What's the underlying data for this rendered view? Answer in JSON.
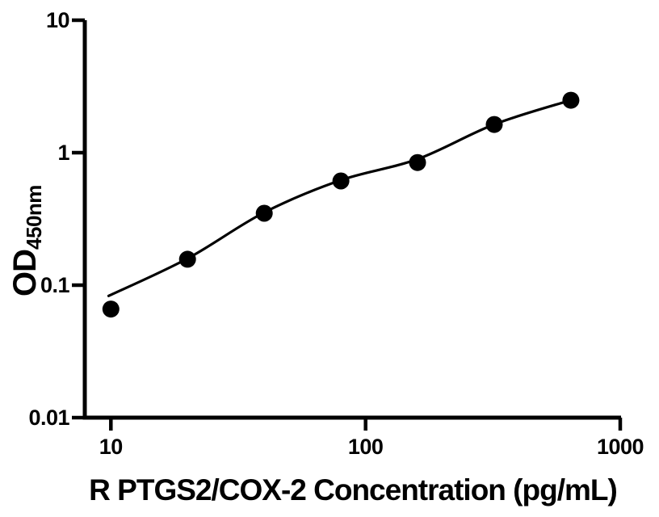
{
  "chart_data": {
    "type": "scatter",
    "title": "",
    "xlabel": "R PTGS2/COX-2 Concentration (pg/mL)",
    "ylabel_main": "OD",
    "ylabel_sub": "450nm",
    "x_scale": "log",
    "y_scale": "log",
    "xlim": [
      7.9,
      1007
    ],
    "ylim": [
      0.01,
      10
    ],
    "x_ticks": [
      10,
      100,
      1000
    ],
    "x_tick_labels": [
      "10",
      "100",
      "1000"
    ],
    "y_ticks": [
      10,
      1,
      0.1,
      0.01
    ],
    "y_tick_labels": [
      "10",
      "1",
      "0.1",
      "0.01"
    ],
    "grid": false,
    "legend": false,
    "marker_color": "#000000",
    "line_color": "#000000",
    "axis_color": "#000000",
    "background": "#ffffff",
    "points": [
      {
        "x": 10,
        "od": 0.066
      },
      {
        "x": 20,
        "od": 0.157
      },
      {
        "x": 40,
        "od": 0.349
      },
      {
        "x": 80,
        "od": 0.612
      },
      {
        "x": 160,
        "od": 0.843
      },
      {
        "x": 320,
        "od": 1.633
      },
      {
        "x": 640,
        "od": 2.489
      }
    ],
    "fit_curve": [
      {
        "x": 9.8,
        "od": 0.083
      },
      {
        "x": 20,
        "od": 0.159
      },
      {
        "x": 40,
        "od": 0.354
      },
      {
        "x": 80,
        "od": 0.62
      },
      {
        "x": 160,
        "od": 0.894
      },
      {
        "x": 320,
        "od": 1.635
      },
      {
        "x": 640,
        "od": 2.49
      }
    ]
  }
}
